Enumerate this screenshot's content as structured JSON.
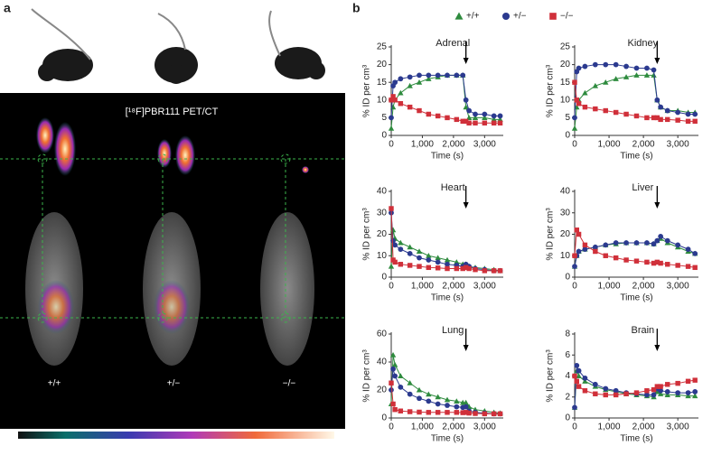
{
  "panel_a": {
    "label": "a",
    "title": "[¹⁸F]PBR111 PET/CT",
    "genotypes": [
      "+/+",
      "+/−",
      "−/−"
    ]
  },
  "panel_b_label": "b",
  "chart_data": [
    {
      "type": "line",
      "title": "Adrenal",
      "x_label": "Time (s)",
      "y_label": "% ID per cm³",
      "xlim": [
        0,
        3600
      ],
      "ylim": [
        0,
        25
      ],
      "xticks": [
        0,
        {
          "value": 1000,
          "label": "1,000"
        },
        {
          "value": 2000,
          "label": "2,000"
        },
        {
          "value": 3000,
          "label": "3,000"
        }
      ],
      "yticks": [
        0,
        5,
        10,
        15,
        20,
        25
      ],
      "arrow_x": 2400,
      "x": [
        0,
        60,
        120,
        300,
        600,
        900,
        1200,
        1500,
        1800,
        2100,
        2300,
        2400,
        2500,
        2700,
        3000,
        3300,
        3500
      ],
      "series": [
        {
          "name": "+/+",
          "color": "#2e8b3e",
          "marker": "triangle",
          "values": [
            2,
            8,
            10,
            12,
            14,
            15,
            16,
            16.5,
            17,
            17,
            17,
            8,
            5,
            5,
            5,
            4.5,
            4.5
          ]
        },
        {
          "name": "+/−",
          "color": "#2b3a8f",
          "marker": "circle",
          "values": [
            5,
            14,
            15,
            16,
            16.5,
            17,
            17,
            17,
            17,
            17,
            17,
            10,
            7,
            6,
            6,
            5.5,
            5.5
          ]
        },
        {
          "name": "−/−",
          "color": "#d0303a",
          "marker": "square",
          "values": [
            10,
            11,
            10,
            9,
            8,
            7,
            6,
            5.5,
            5,
            4.5,
            4,
            4,
            3.5,
            3.5,
            3.5,
            3.5,
            3.5
          ]
        }
      ]
    },
    {
      "type": "line",
      "title": "Kidney",
      "x_label": "Time (s)",
      "y_label": "% ID per cm³",
      "xlim": [
        0,
        3600
      ],
      "ylim": [
        0,
        25
      ],
      "xticks": [
        0,
        {
          "value": 1000,
          "label": "1,000"
        },
        {
          "value": 2000,
          "label": "2,000"
        },
        {
          "value": 3000,
          "label": "3,000"
        }
      ],
      "yticks": [
        0,
        5,
        10,
        15,
        20,
        25
      ],
      "arrow_x": 2400,
      "x": [
        0,
        60,
        120,
        300,
        600,
        900,
        1200,
        1500,
        1800,
        2100,
        2300,
        2400,
        2500,
        2700,
        3000,
        3300,
        3500
      ],
      "series": [
        {
          "name": "+/+",
          "color": "#2e8b3e",
          "marker": "triangle",
          "values": [
            2,
            8,
            10,
            12,
            14,
            15,
            16,
            16.5,
            17,
            17,
            17,
            10,
            8,
            7,
            7,
            6.5,
            6.5
          ]
        },
        {
          "name": "+/−",
          "color": "#2b3a8f",
          "marker": "circle",
          "values": [
            5,
            18,
            19,
            19.5,
            20,
            20,
            20,
            19.5,
            19,
            19,
            18.5,
            10,
            8,
            7,
            6.5,
            6,
            6
          ]
        },
        {
          "name": "−/−",
          "color": "#d0303a",
          "marker": "square",
          "values": [
            15,
            10,
            9,
            8,
            7.5,
            7,
            6.5,
            6,
            5.5,
            5,
            5,
            5,
            4.5,
            4.5,
            4.3,
            4,
            4
          ]
        }
      ]
    },
    {
      "type": "line",
      "title": "Heart",
      "x_label": "Time (s)",
      "y_label": "% ID per cm³",
      "xlim": [
        0,
        3600
      ],
      "ylim": [
        0,
        40
      ],
      "xticks": [
        0,
        {
          "value": 1000,
          "label": "1,000"
        },
        {
          "value": 2000,
          "label": "2,000"
        },
        {
          "value": 3000,
          "label": "3,000"
        }
      ],
      "yticks": [
        0,
        10,
        20,
        30,
        40
      ],
      "arrow_x": 2400,
      "x": [
        0,
        60,
        120,
        300,
        600,
        900,
        1200,
        1500,
        1800,
        2100,
        2300,
        2400,
        2500,
        2700,
        3000,
        3300,
        3500
      ],
      "series": [
        {
          "name": "+/+",
          "color": "#2e8b3e",
          "marker": "triangle",
          "values": [
            5,
            22,
            18,
            16,
            14,
            12,
            10,
            9,
            8,
            7,
            6,
            6,
            5,
            4.5,
            4,
            3.5,
            3
          ]
        },
        {
          "name": "+/−",
          "color": "#2b3a8f",
          "marker": "circle",
          "values": [
            30,
            17,
            15,
            13,
            11,
            9,
            8,
            7,
            6,
            5.5,
            5,
            6,
            5,
            4,
            3.5,
            3,
            3
          ]
        },
        {
          "name": "−/−",
          "color": "#d0303a",
          "marker": "square",
          "values": [
            32,
            8,
            7,
            6,
            5.5,
            5,
            4.5,
            4.3,
            4,
            4,
            4,
            4.5,
            4,
            3.5,
            3,
            3,
            3
          ]
        }
      ]
    },
    {
      "type": "line",
      "title": "Liver",
      "x_label": "Time (s)",
      "y_label": "% ID per cm³",
      "xlim": [
        0,
        3600
      ],
      "ylim": [
        0,
        40
      ],
      "xticks": [
        0,
        {
          "value": 1000,
          "label": "1,000"
        },
        {
          "value": 2000,
          "label": "2,000"
        },
        {
          "value": 3000,
          "label": "3,000"
        }
      ],
      "yticks": [
        0,
        10,
        20,
        30,
        40
      ],
      "arrow_x": 2400,
      "x": [
        0,
        60,
        120,
        300,
        600,
        900,
        1200,
        1500,
        1800,
        2100,
        2300,
        2400,
        2500,
        2700,
        3000,
        3300,
        3500
      ],
      "series": [
        {
          "name": "+/+",
          "color": "#2e8b3e",
          "marker": "triangle",
          "values": [
            5,
            10,
            12,
            13,
            14,
            15,
            15.5,
            16,
            16,
            16,
            15.5,
            17,
            18,
            16,
            14,
            12,
            11
          ]
        },
        {
          "name": "+/−",
          "color": "#2b3a8f",
          "marker": "circle",
          "values": [
            5,
            10,
            12,
            13,
            14,
            15,
            16,
            16,
            16,
            16,
            15.5,
            17,
            19,
            17,
            15,
            13,
            11
          ]
        },
        {
          "name": "−/−",
          "color": "#d0303a",
          "marker": "square",
          "values": [
            10,
            22,
            20,
            15,
            12,
            10,
            9,
            8,
            7.5,
            7,
            6.5,
            7,
            6.5,
            6,
            5.5,
            5,
            4.5
          ]
        }
      ]
    },
    {
      "type": "line",
      "title": "Lung",
      "x_label": "Time (s)",
      "y_label": "% ID per cm³",
      "xlim": [
        0,
        3600
      ],
      "ylim": [
        0,
        60
      ],
      "xticks": [
        0,
        {
          "value": 1000,
          "label": "1,000"
        },
        {
          "value": 2000,
          "label": "2,000"
        },
        {
          "value": 3000,
          "label": "3,000"
        }
      ],
      "yticks": [
        0,
        20,
        40,
        60
      ],
      "arrow_x": 2400,
      "x": [
        0,
        60,
        120,
        300,
        600,
        900,
        1200,
        1500,
        1800,
        2100,
        2300,
        2400,
        2500,
        2700,
        3000,
        3300,
        3500
      ],
      "series": [
        {
          "name": "+/+",
          "color": "#2e8b3e",
          "marker": "triangle",
          "values": [
            10,
            45,
            38,
            30,
            25,
            20,
            17,
            15,
            13,
            12,
            11,
            11,
            8,
            6,
            5,
            4,
            3.5
          ]
        },
        {
          "name": "+/−",
          "color": "#2b3a8f",
          "marker": "circle",
          "values": [
            20,
            35,
            30,
            22,
            17,
            14,
            12,
            10,
            9,
            8,
            7.5,
            8,
            5,
            4,
            3.5,
            3,
            3
          ]
        },
        {
          "name": "−/−",
          "color": "#d0303a",
          "marker": "square",
          "values": [
            25,
            10,
            6,
            5,
            4.5,
            4.2,
            4,
            4,
            4,
            4,
            3.8,
            4,
            3.5,
            3.2,
            3,
            3,
            3
          ]
        }
      ]
    },
    {
      "type": "line",
      "title": "Brain",
      "x_label": "Time (s)",
      "y_label": "% ID per cm³",
      "xlim": [
        0,
        3600
      ],
      "ylim": [
        0,
        8
      ],
      "xticks": [
        0,
        {
          "value": 1000,
          "label": "1,000"
        },
        {
          "value": 2000,
          "label": "2,000"
        },
        {
          "value": 3000,
          "label": "3,000"
        }
      ],
      "yticks": [
        0,
        2,
        4,
        6,
        8
      ],
      "arrow_x": 2400,
      "x": [
        0,
        60,
        120,
        300,
        600,
        900,
        1200,
        1500,
        1800,
        2100,
        2300,
        2400,
        2500,
        2700,
        3000,
        3300,
        3500
      ],
      "series": [
        {
          "name": "+/+",
          "color": "#2e8b3e",
          "marker": "triangle",
          "values": [
            1,
            4.5,
            4,
            3.5,
            3,
            2.7,
            2.5,
            2.3,
            2.2,
            2.1,
            2,
            2.5,
            2.3,
            2.2,
            2.2,
            2.1,
            2.1
          ]
        },
        {
          "name": "+/−",
          "color": "#2b3a8f",
          "marker": "circle",
          "values": [
            1,
            5,
            4.5,
            3.8,
            3.2,
            2.8,
            2.6,
            2.4,
            2.3,
            2.2,
            2.2,
            2.8,
            2.6,
            2.5,
            2.4,
            2.4,
            2.5
          ]
        },
        {
          "name": "−/−",
          "color": "#d0303a",
          "marker": "square",
          "values": [
            4,
            3.5,
            3,
            2.6,
            2.3,
            2.2,
            2.2,
            2.3,
            2.4,
            2.6,
            2.7,
            3,
            3,
            3.2,
            3.3,
            3.5,
            3.6
          ]
        }
      ]
    }
  ]
}
